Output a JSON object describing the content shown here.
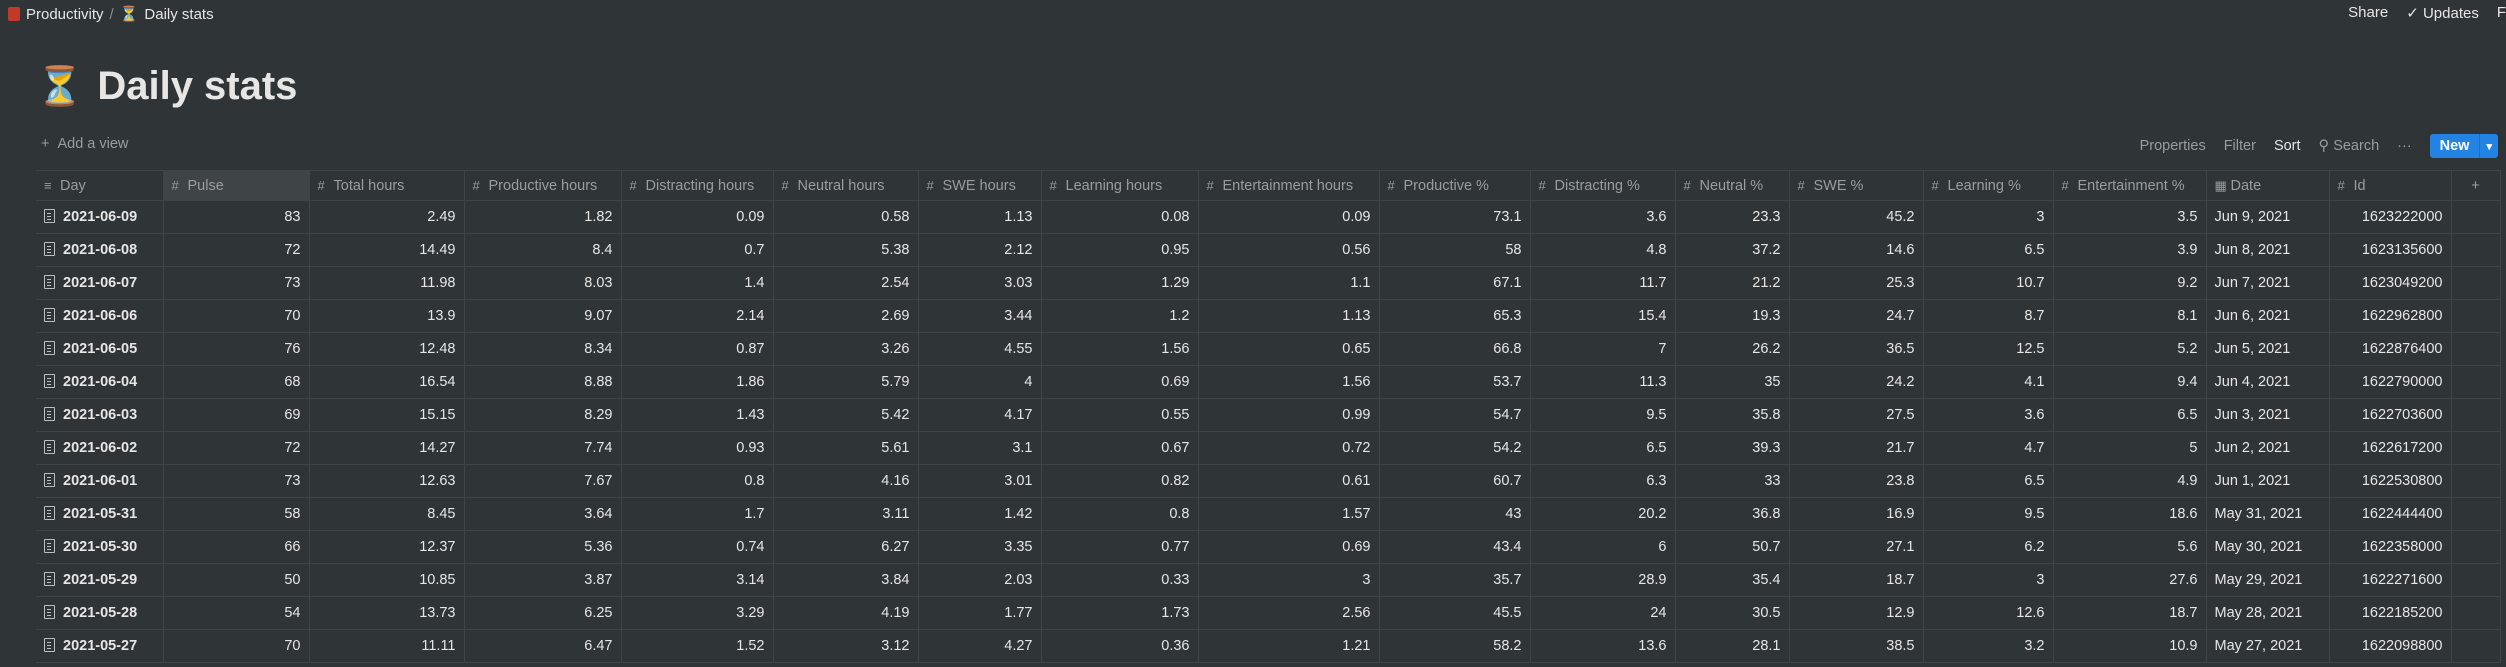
{
  "breadcrumb": {
    "workspace": "Productivity",
    "separator": "/",
    "page": "Daily stats",
    "page_icon": "⏳"
  },
  "topbar": {
    "share": "Share",
    "updates": "Updates",
    "extra": "F"
  },
  "page": {
    "icon": "⏳",
    "title": "Daily stats"
  },
  "view": {
    "add_view": "Add a view"
  },
  "toolbar": {
    "properties": "Properties",
    "filter": "Filter",
    "sort": "Sort",
    "search": "Search",
    "more": "···",
    "new": "New"
  },
  "table": {
    "columns": [
      "Day",
      "Pulse",
      "Total hours",
      "Productive hours",
      "Distracting hours",
      "Neutral hours",
      "SWE hours",
      "Learning hours",
      "Entertainment hours",
      "Productive %",
      "Distracting %",
      "Neutral %",
      "SWE %",
      "Learning %",
      "Entertainment %",
      "Date",
      "Id"
    ],
    "add_column": "+",
    "rows": [
      [
        "2021-06-09",
        "83",
        "2.49",
        "1.82",
        "0.09",
        "0.58",
        "1.13",
        "0.08",
        "0.09",
        "73.1",
        "3.6",
        "23.3",
        "45.2",
        "3",
        "3.5",
        "Jun 9, 2021",
        "1623222000"
      ],
      [
        "2021-06-08",
        "72",
        "14.49",
        "8.4",
        "0.7",
        "5.38",
        "2.12",
        "0.95",
        "0.56",
        "58",
        "4.8",
        "37.2",
        "14.6",
        "6.5",
        "3.9",
        "Jun 8, 2021",
        "1623135600"
      ],
      [
        "2021-06-07",
        "73",
        "11.98",
        "8.03",
        "1.4",
        "2.54",
        "3.03",
        "1.29",
        "1.1",
        "67.1",
        "11.7",
        "21.2",
        "25.3",
        "10.7",
        "9.2",
        "Jun 7, 2021",
        "1623049200"
      ],
      [
        "2021-06-06",
        "70",
        "13.9",
        "9.07",
        "2.14",
        "2.69",
        "3.44",
        "1.2",
        "1.13",
        "65.3",
        "15.4",
        "19.3",
        "24.7",
        "8.7",
        "8.1",
        "Jun 6, 2021",
        "1622962800"
      ],
      [
        "2021-06-05",
        "76",
        "12.48",
        "8.34",
        "0.87",
        "3.26",
        "4.55",
        "1.56",
        "0.65",
        "66.8",
        "7",
        "26.2",
        "36.5",
        "12.5",
        "5.2",
        "Jun 5, 2021",
        "1622876400"
      ],
      [
        "2021-06-04",
        "68",
        "16.54",
        "8.88",
        "1.86",
        "5.79",
        "4",
        "0.69",
        "1.56",
        "53.7",
        "11.3",
        "35",
        "24.2",
        "4.1",
        "9.4",
        "Jun 4, 2021",
        "1622790000"
      ],
      [
        "2021-06-03",
        "69",
        "15.15",
        "8.29",
        "1.43",
        "5.42",
        "4.17",
        "0.55",
        "0.99",
        "54.7",
        "9.5",
        "35.8",
        "27.5",
        "3.6",
        "6.5",
        "Jun 3, 2021",
        "1622703600"
      ],
      [
        "2021-06-02",
        "72",
        "14.27",
        "7.74",
        "0.93",
        "5.61",
        "3.1",
        "0.67",
        "0.72",
        "54.2",
        "6.5",
        "39.3",
        "21.7",
        "4.7",
        "5",
        "Jun 2, 2021",
        "1622617200"
      ],
      [
        "2021-06-01",
        "73",
        "12.63",
        "7.67",
        "0.8",
        "4.16",
        "3.01",
        "0.82",
        "0.61",
        "60.7",
        "6.3",
        "33",
        "23.8",
        "6.5",
        "4.9",
        "Jun 1, 2021",
        "1622530800"
      ],
      [
        "2021-05-31",
        "58",
        "8.45",
        "3.64",
        "1.7",
        "3.11",
        "1.42",
        "0.8",
        "1.57",
        "43",
        "20.2",
        "36.8",
        "16.9",
        "9.5",
        "18.6",
        "May 31, 2021",
        "1622444400"
      ],
      [
        "2021-05-30",
        "66",
        "12.37",
        "5.36",
        "0.74",
        "6.27",
        "3.35",
        "0.77",
        "0.69",
        "43.4",
        "6",
        "50.7",
        "27.1",
        "6.2",
        "5.6",
        "May 30, 2021",
        "1622358000"
      ],
      [
        "2021-05-29",
        "50",
        "10.85",
        "3.87",
        "3.14",
        "3.84",
        "2.03",
        "0.33",
        "3",
        "35.7",
        "28.9",
        "35.4",
        "18.7",
        "3",
        "27.6",
        "May 29, 2021",
        "1622271600"
      ],
      [
        "2021-05-28",
        "54",
        "13.73",
        "6.25",
        "3.29",
        "4.19",
        "1.77",
        "1.73",
        "2.56",
        "45.5",
        "24",
        "30.5",
        "12.9",
        "12.6",
        "18.7",
        "May 28, 2021",
        "1622185200"
      ],
      [
        "2021-05-27",
        "70",
        "11.11",
        "6.47",
        "1.52",
        "3.12",
        "4.27",
        "0.36",
        "1.21",
        "58.2",
        "13.6",
        "28.1",
        "38.5",
        "3.2",
        "10.9",
        "May 27, 2021",
        "1622098800"
      ]
    ]
  }
}
